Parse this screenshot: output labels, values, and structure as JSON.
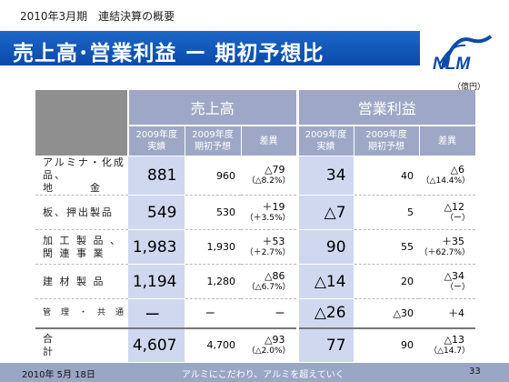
{
  "header": {
    "subtitle": "2010年3月期　連結決算の概要",
    "title": "売上高･営業利益 ー 期初予想比",
    "unit": "（億円）"
  },
  "logo": {
    "text": "NLM",
    "color": "#0b4aa8"
  },
  "table": {
    "groups": [
      "売上高",
      "営業利益"
    ],
    "subheaders": [
      {
        "l1": "2009年度",
        "l2": "実績"
      },
      {
        "l1": "2009年度",
        "l2": "期初予想"
      },
      {
        "l1": "差異",
        "l2": ""
      },
      {
        "l1": "2009年度",
        "l2": "実績"
      },
      {
        "l1": "2009年度",
        "l2": "期初予想"
      },
      {
        "l1": "差異",
        "l2": ""
      }
    ],
    "rows": [
      {
        "label1": "アルミナ・化成品、",
        "label2": "地　　　金",
        "s_actual": "881",
        "s_plan": "960",
        "s_diff": "△79",
        "s_pct": "（△8.2%）",
        "o_actual": "34",
        "o_plan": "40",
        "o_diff": "△6",
        "o_pct": "（△14.4%）"
      },
      {
        "label1": "板、押出製品",
        "label2": "",
        "s_actual": "549",
        "s_plan": "530",
        "s_diff": "＋19",
        "s_pct": "（＋3.5%）",
        "o_actual": "△7",
        "o_plan": "5",
        "o_diff": "△12",
        "o_pct": "（ー）"
      },
      {
        "label1": "加 工 製 品 、",
        "label2": "関 連 事 業",
        "s_actual": "1,983",
        "s_plan": "1,930",
        "s_diff": "＋53",
        "s_pct": "（＋2.7%）",
        "o_actual": "90",
        "o_plan": "55",
        "o_diff": "＋35",
        "o_pct": "（＋62.7%）"
      },
      {
        "label1": "建 材 製 品",
        "label2": "",
        "s_actual": "1,194",
        "s_plan": "1,280",
        "s_diff": "△86",
        "s_pct": "（△6.7%）",
        "o_actual": "△14",
        "o_plan": "20",
        "o_diff": "△34",
        "o_pct": "（ー）"
      },
      {
        "label1": "管　理　・　共　通",
        "label2": "",
        "s_actual": "ー",
        "s_plan": "ー",
        "s_diff": "ー",
        "s_pct": "",
        "o_actual": "△26",
        "o_plan": "△30",
        "o_diff": "＋4",
        "o_pct": ""
      }
    ],
    "total": {
      "label": "合　　　　　　　計",
      "s_actual": "4,607",
      "s_plan": "4,700",
      "s_diff": "△93",
      "s_pct": "（△2.0%）",
      "o_actual": "77",
      "o_plan": "90",
      "o_diff": "△13",
      "o_pct": "（△14.7）"
    }
  },
  "footer": {
    "date": "2010年 5月 18日",
    "slogan": "アルミにこだわり、アルミを超えていく",
    "page": "33"
  },
  "colors": {
    "title_bar": "#0b4aa8",
    "header_cells": "#9ea8c6",
    "highlight_cells": "#cfd8ef",
    "footer": "#9aa6c6"
  }
}
